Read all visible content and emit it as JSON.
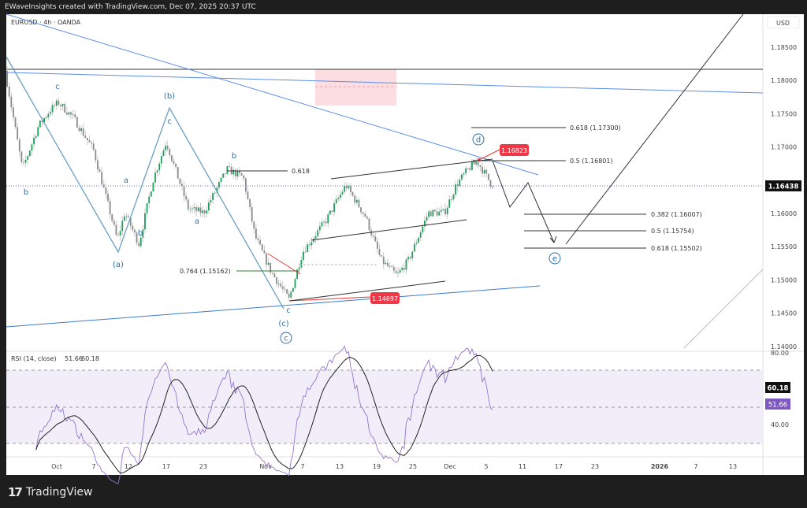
{
  "header": {
    "text": "EWaveInsights created with TradingView.com, Dec 07, 2025 20:37 UTC"
  },
  "symbol": {
    "text": "EURUSD · 4h · OANDA"
  },
  "price_axis": {
    "currency": "USD",
    "ticks": [
      "1.18500",
      "1.18000",
      "1.17500",
      "1.17000",
      "1.16000",
      "1.15500",
      "1.15000",
      "1.14500",
      "1.14000"
    ],
    "last_price": "1.16438"
  },
  "rsi": {
    "title": "RSI (14, close)",
    "value": "51.66",
    "ma": "60.18",
    "ticks": [
      "80.00",
      "40.00"
    ],
    "color": "#7e57c2"
  },
  "time_axis": [
    "Oct",
    "7",
    "12",
    "17",
    "23",
    "Nov",
    "7",
    "13",
    "19",
    "25",
    "Dec",
    "5",
    "11",
    "17",
    "23",
    "2026",
    "7",
    "13"
  ],
  "annotations": {
    "fib_0618_top": "0.618 (1.17300)",
    "fib_05_top": "0.5 (1.16801)",
    "fib_0382": "0.382 (1.16007)",
    "fib_05": "0.5 (1.15754)",
    "fib_0618": "0.618 (1.15502)",
    "fib_618_left": "0.618",
    "fib_0764": "0.764 (1.15162)",
    "high_label": "1.16823",
    "low_label": "1.14697"
  },
  "waves": {
    "c1": "c",
    "b1": "b",
    "a1": "a",
    "b2": "b",
    "pa": "(a)",
    "pb": "(b)",
    "c2": "c",
    "b3": "b",
    "a2": "a",
    "c3": "c",
    "pc": "(c)",
    "cc": "c",
    "cd": "d",
    "ce": "e"
  },
  "footer": {
    "brand": "TradingView"
  },
  "chart_data": {
    "type": "candlestick",
    "symbol": "EURUSD",
    "timeframe": "4h",
    "ylim": [
      1.1375,
      1.189
    ],
    "price_path_day_price": [
      [
        -8.2,
        1.18145
      ],
      [
        -5.4,
        1.16663
      ],
      [
        -2.8,
        1.17315
      ],
      [
        -0.9,
        1.17552
      ],
      [
        0.4,
        1.17671
      ],
      [
        2.9,
        1.17434
      ],
      [
        6.1,
        1.1696
      ],
      [
        10,
        1.15597
      ],
      [
        11.2,
        1.16012
      ],
      [
        13.5,
        1.15538
      ],
      [
        15.7,
        1.16485
      ],
      [
        17.9,
        1.17078
      ],
      [
        21.5,
        1.16071
      ],
      [
        24,
        1.16012
      ],
      [
        27.8,
        1.16663
      ],
      [
        30.4,
        1.16545
      ],
      [
        32.3,
        1.15656
      ],
      [
        34.9,
        1.15123
      ],
      [
        37.8,
        1.14708
      ],
      [
        40,
        1.15419
      ],
      [
        41.9,
        1.15656
      ],
      [
        43.8,
        1.15893
      ],
      [
        47,
        1.16426
      ],
      [
        50.2,
        1.15952
      ],
      [
        52.7,
        1.15301
      ],
      [
        55.3,
        1.15064
      ],
      [
        57.2,
        1.15301
      ],
      [
        60.4,
        1.16012
      ],
      [
        63,
        1.16012
      ],
      [
        64.9,
        1.16426
      ],
      [
        66.8,
        1.16663
      ],
      [
        68.3,
        1.16782
      ],
      [
        70.6,
        1.16438
      ]
    ],
    "day_zero": "Oct 1"
  }
}
